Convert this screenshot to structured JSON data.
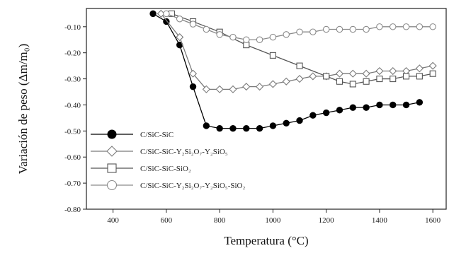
{
  "chart_data": {
    "type": "line",
    "xlabel": "Temperatura (°C)",
    "ylabel": "Variación de peso (Δm/m₀)",
    "xlim": [
      300,
      1650
    ],
    "ylim": [
      -0.8,
      -0.03
    ],
    "xticks": [
      400,
      600,
      800,
      1000,
      1200,
      1400,
      1600
    ],
    "yticks": [
      -0.1,
      -0.2,
      -0.3,
      -0.4,
      -0.5,
      -0.6,
      -0.7,
      -0.8
    ],
    "ytick_labels": [
      "-0.10",
      "-0.20",
      "-0.30",
      "-0.40",
      "-0.50",
      "-0.60",
      "-0.70",
      "-0.80"
    ],
    "legend_placement": "bottom-left",
    "series": [
      {
        "name": "C/SiC-SiC",
        "marker": "filled-circle",
        "color": "#000000",
        "x": [
          550,
          600,
          650,
          700,
          750,
          800,
          850,
          900,
          950,
          1000,
          1050,
          1100,
          1150,
          1200,
          1250,
          1300,
          1350,
          1400,
          1450,
          1500,
          1550
        ],
        "y": [
          -0.05,
          -0.08,
          -0.17,
          -0.33,
          -0.48,
          -0.49,
          -0.49,
          -0.49,
          -0.49,
          -0.48,
          -0.47,
          -0.46,
          -0.44,
          -0.43,
          -0.42,
          -0.41,
          -0.41,
          -0.4,
          -0.4,
          -0.4,
          -0.39
        ]
      },
      {
        "name": "C/SiC-SiC-Y₂Si₂O₇-Y₂SiO₅",
        "marker": "open-diamond",
        "color": "#7a7a7a",
        "x": [
          580,
          650,
          700,
          750,
          800,
          850,
          900,
          950,
          1000,
          1050,
          1100,
          1150,
          1200,
          1250,
          1300,
          1350,
          1400,
          1450,
          1500,
          1550,
          1600
        ],
        "y": [
          -0.05,
          -0.14,
          -0.28,
          -0.34,
          -0.34,
          -0.34,
          -0.33,
          -0.33,
          -0.32,
          -0.31,
          -0.3,
          -0.29,
          -0.29,
          -0.28,
          -0.28,
          -0.28,
          -0.27,
          -0.27,
          -0.27,
          -0.26,
          -0.25
        ]
      },
      {
        "name": "C/SiC-SiC-SiO₂",
        "marker": "open-square",
        "color": "#555555",
        "x": [
          620,
          700,
          800,
          900,
          1000,
          1100,
          1200,
          1250,
          1300,
          1350,
          1400,
          1450,
          1500,
          1550,
          1600
        ],
        "y": [
          -0.05,
          -0.08,
          -0.12,
          -0.17,
          -0.21,
          -0.25,
          -0.29,
          -0.31,
          -0.32,
          -0.31,
          -0.3,
          -0.3,
          -0.29,
          -0.29,
          -0.28
        ]
      },
      {
        "name": "C/SiC-SiC-Y₂Si₂O₇-Y₂SiO₅-SiO₂",
        "marker": "open-circle",
        "color": "#8a8a8a",
        "x": [
          600,
          650,
          700,
          750,
          800,
          850,
          900,
          950,
          1000,
          1050,
          1100,
          1150,
          1200,
          1250,
          1300,
          1350,
          1400,
          1450,
          1500,
          1550,
          1600
        ],
        "y": [
          -0.05,
          -0.07,
          -0.09,
          -0.11,
          -0.13,
          -0.14,
          -0.15,
          -0.15,
          -0.14,
          -0.13,
          -0.12,
          -0.12,
          -0.11,
          -0.11,
          -0.11,
          -0.11,
          -0.1,
          -0.1,
          -0.1,
          -0.1,
          -0.1
        ]
      }
    ]
  }
}
